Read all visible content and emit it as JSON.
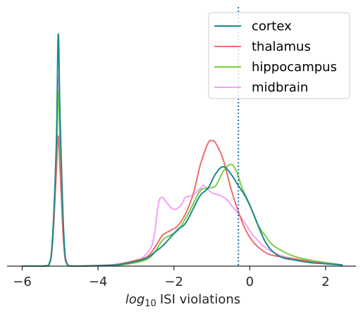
{
  "chart_data": {
    "type": "line",
    "title": "",
    "xlabel": "ISI violations",
    "xlabel_prefix": "log",
    "xlabel_subscript": "10",
    "ylabel": "",
    "xlim": [
      -6.4,
      2.8
    ],
    "ylim": [
      0,
      1.0
    ],
    "xticks": [
      -6,
      -4,
      -2,
      0,
      2
    ],
    "xtick_labels": [
      "−6",
      "−4",
      "−2",
      "0",
      "2"
    ],
    "yticks": [],
    "grid": false,
    "legend_placement": "top-right",
    "reference_line": {
      "x": -0.3,
      "style": "dotted",
      "color": "#1f77b4"
    },
    "series": [
      {
        "name": "cortex",
        "color": "#1b8a8a",
        "x": [
          -6.0,
          -5.5,
          -5.3,
          -5.2,
          -5.1,
          -5.05,
          -5.0,
          -4.9,
          -4.8,
          -4.6,
          -4.0,
          -3.5,
          -3.0,
          -2.7,
          -2.5,
          -2.3,
          -2.1,
          -1.9,
          -1.7,
          -1.5,
          -1.3,
          -1.1,
          -0.9,
          -0.7,
          -0.5,
          -0.3,
          -0.1,
          0.1,
          0.3,
          0.5,
          0.8,
          1.2,
          1.6,
          2.0,
          2.45
        ],
        "y": [
          0.0,
          0.0,
          0.005,
          0.12,
          0.52,
          0.98,
          0.62,
          0.12,
          0.005,
          0.0,
          0.002,
          0.005,
          0.02,
          0.035,
          0.06,
          0.085,
          0.12,
          0.155,
          0.18,
          0.24,
          0.3,
          0.33,
          0.39,
          0.42,
          0.39,
          0.34,
          0.29,
          0.22,
          0.14,
          0.08,
          0.04,
          0.025,
          0.015,
          0.01,
          0.005
        ]
      },
      {
        "name": "thalamus",
        "color": "#f06b6b",
        "x": [
          -6.0,
          -5.5,
          -5.3,
          -5.2,
          -5.1,
          -5.05,
          -5.0,
          -4.9,
          -4.8,
          -4.6,
          -4.0,
          -3.5,
          -3.0,
          -2.7,
          -2.5,
          -2.3,
          -2.1,
          -1.9,
          -1.7,
          -1.5,
          -1.3,
          -1.1,
          -1.0,
          -0.9,
          -0.7,
          -0.5,
          -0.3,
          -0.1,
          0.1,
          0.3,
          0.5,
          0.8,
          1.2,
          1.6,
          2.0,
          2.45
        ],
        "y": [
          0.0,
          0.0,
          0.004,
          0.1,
          0.4,
          0.55,
          0.4,
          0.08,
          0.004,
          0.0,
          0.003,
          0.008,
          0.025,
          0.04,
          0.08,
          0.13,
          0.15,
          0.17,
          0.22,
          0.3,
          0.43,
          0.52,
          0.53,
          0.52,
          0.45,
          0.33,
          0.23,
          0.15,
          0.1,
          0.07,
          0.05,
          0.04,
          0.03,
          0.02,
          0.01,
          0.005
        ]
      },
      {
        "name": "hippocampus",
        "color": "#7acc45",
        "x": [
          -6.0,
          -5.5,
          -5.3,
          -5.2,
          -5.1,
          -5.05,
          -5.0,
          -4.9,
          -4.8,
          -4.6,
          -4.0,
          -3.5,
          -3.0,
          -2.7,
          -2.5,
          -2.3,
          -2.1,
          -1.9,
          -1.7,
          -1.5,
          -1.3,
          -1.1,
          -0.9,
          -0.7,
          -0.5,
          -0.35,
          -0.2,
          0.0,
          0.2,
          0.4,
          0.6,
          0.9,
          1.2,
          1.6,
          2.0,
          2.45
        ],
        "y": [
          0.0,
          0.0,
          0.004,
          0.1,
          0.45,
          0.74,
          0.5,
          0.1,
          0.004,
          0.0,
          0.002,
          0.004,
          0.015,
          0.03,
          0.06,
          0.11,
          0.13,
          0.15,
          0.2,
          0.26,
          0.32,
          0.33,
          0.34,
          0.4,
          0.43,
          0.4,
          0.33,
          0.26,
          0.18,
          0.13,
          0.09,
          0.06,
          0.04,
          0.025,
          0.015,
          0.005
        ]
      },
      {
        "name": "midbrain",
        "color": "#f5a0f5",
        "x": [
          -6.0,
          -5.5,
          -5.3,
          -5.2,
          -5.1,
          -5.05,
          -5.0,
          -4.9,
          -4.8,
          -4.6,
          -4.0,
          -3.5,
          -3.0,
          -2.8,
          -2.6,
          -2.5,
          -2.4,
          -2.3,
          -2.2,
          -2.0,
          -1.8,
          -1.7,
          -1.5,
          -1.3,
          -1.2,
          -1.0,
          -0.8,
          -0.6,
          -0.4,
          -0.2,
          0.0,
          0.2,
          0.4,
          0.6,
          0.9,
          1.2,
          1.6,
          2.0,
          2.45
        ],
        "y": [
          0.0,
          0.0,
          0.004,
          0.12,
          0.5,
          0.8,
          0.55,
          0.12,
          0.004,
          0.0,
          0.002,
          0.005,
          0.02,
          0.04,
          0.08,
          0.15,
          0.27,
          0.29,
          0.27,
          0.24,
          0.26,
          0.29,
          0.3,
          0.33,
          0.34,
          0.31,
          0.3,
          0.28,
          0.24,
          0.2,
          0.15,
          0.11,
          0.08,
          0.06,
          0.04,
          0.03,
          0.02,
          0.01,
          0.005
        ]
      }
    ]
  }
}
